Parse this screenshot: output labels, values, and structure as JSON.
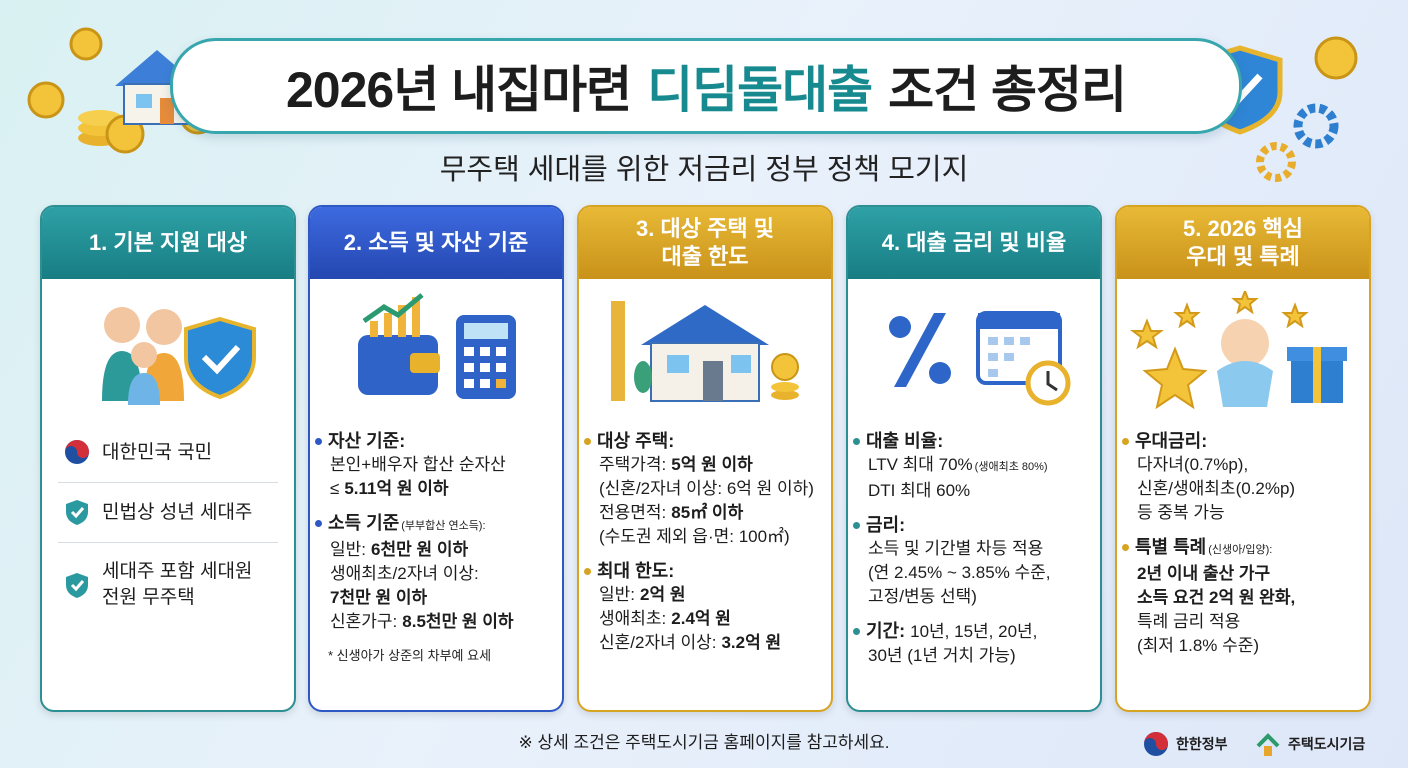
{
  "header": {
    "title_before": "2026년 내집마련",
    "title_highlight": "디딤돌대출",
    "title_after": "조건 총정리",
    "subtitle": "무주택 세대를 위한 저금리 정부 정책 모기지"
  },
  "eligibility": {
    "title": [
      "1. 기본 지원 대상"
    ],
    "items": [
      [
        "대한민국 국민"
      ],
      [
        "민법상 성년 세대주"
      ],
      [
        "세대주 포함 세대원",
        "전원 무주택"
      ]
    ]
  },
  "cards": [
    {
      "title": [
        "2. 소득 및 자산 기준"
      ],
      "sections": [
        {
          "label": "자산 기준:",
          "lines": [
            {
              "text": "본인+배우자 합산 순자산"
            },
            {
              "text": "≤",
              "strong": "5.11억 원 이하"
            }
          ]
        },
        {
          "label": "소득 기준",
          "label_note": "(부부합산 연소득):",
          "lines": [
            {
              "text": "일반:",
              "strong": "6천만 원 이하"
            },
            {
              "text": "생애최초/2자녀 이상:"
            },
            {
              "strong": "7천만 원 이하"
            },
            {
              "text": "신혼가구:",
              "strong": "8.5천만 원 이하"
            }
          ]
        }
      ],
      "note": "* 신생아가 상준의 차부예 요세"
    },
    {
      "title": [
        "3. 대상 주택 및",
        "대출 한도"
      ],
      "sections": [
        {
          "label": "대상 주택:",
          "lines": [
            {
              "text": "주택가격:",
              "strong": "5억 원 이하"
            },
            {
              "text": "(신혼/2자녀 이상: 6억 원 이하)"
            },
            {
              "text": "전용면적:",
              "strong": "85㎡ 이하"
            },
            {
              "text": "(수도권 제외 읍·면: 100㎡)"
            }
          ]
        },
        {
          "label": "최대 한도:",
          "lines": [
            {
              "text": "일반:",
              "strong": "2억 원"
            },
            {
              "text": "생애최초:",
              "strong": "2.4억 원"
            },
            {
              "text": "신혼/2자녀 이상:",
              "strong": "3.2억 원"
            }
          ]
        }
      ]
    },
    {
      "title": [
        "4. 대출 금리 및 비율"
      ],
      "sections": [
        {
          "label": "대출 비율:",
          "lines": [
            {
              "text": "LTV 최대 70%",
              "small": "(생애최초 80%)"
            },
            {
              "text": "DTI 최대 60%"
            }
          ]
        },
        {
          "label": "금리:",
          "lines": [
            {
              "text": "소득 및 기간별 차등 적용"
            },
            {
              "text": "(연 2.45% ~ 3.85% 수준,"
            },
            {
              "text": "고정/변동 선택)"
            }
          ]
        },
        {
          "label": "기간:",
          "label_inline": true,
          "lines": [
            {
              "text": "10년, 15년, 20년,"
            },
            {
              "text": "30년 (1년 거치 가능)"
            }
          ]
        }
      ]
    },
    {
      "title": [
        "5. 2026 핵심",
        "우대 및 특례"
      ],
      "sections": [
        {
          "label": "우대금리:",
          "lines": [
            {
              "text": "다자녀(0.7%p),"
            },
            {
              "text": "신혼/생애최초(0.2%p)"
            },
            {
              "text": "등 중복 가능"
            }
          ]
        },
        {
          "label": "특별 특례",
          "label_note": "(신생아/입양):",
          "lines": [
            {
              "strong": "2년 이내 출산 가구"
            },
            {
              "strong": "소득 요건 2억 원 완화,"
            },
            {
              "text": "특례 금리 적용"
            },
            {
              "text": "(최저 1.8% 수준)"
            }
          ]
        }
      ]
    }
  ],
  "footer": {
    "note": "※ 상세 조건은 주택도시기금 홈페이지를 참고하세요.",
    "logos": [
      "한한정부",
      "주택도시기금"
    ]
  }
}
